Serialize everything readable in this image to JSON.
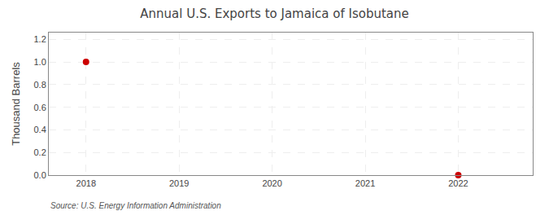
{
  "chart_data": {
    "type": "scatter",
    "title": "Annual U.S. Exports to Jamaica of Isobutane",
    "ylabel": "Thousand Barrels",
    "source": "Source: U.S. Energy Information Administration",
    "x": [
      2018,
      2022
    ],
    "values": [
      1.0,
      0.0
    ],
    "color": "#cc0000",
    "marker": "circle",
    "xlim": [
      2017.6,
      2022.8
    ],
    "xticks": [
      2018,
      2019,
      2020,
      2021,
      2022
    ],
    "ylim": [
      0.0,
      1.26
    ],
    "yticks": [
      {
        "value": 0.0,
        "label": "0.0"
      },
      0.2,
      0.4,
      0.6,
      0.8,
      {
        "value": 1.0,
        "label": "1.0"
      },
      1.2
    ],
    "grid": true
  }
}
